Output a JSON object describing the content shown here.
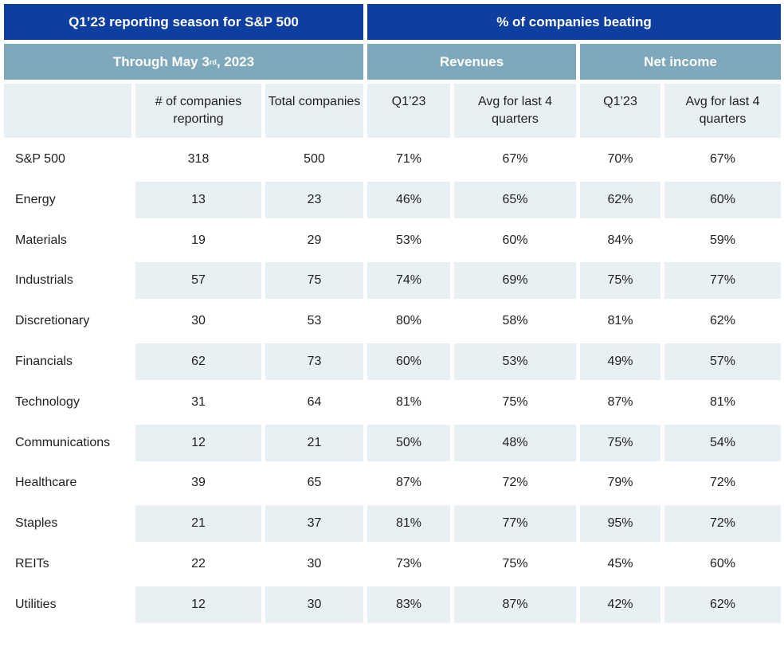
{
  "title_left": "Q1’23 reporting season for S&P 500",
  "title_right": "% of companies beating",
  "subtitle_left": {
    "text": "Through May 3",
    "sup": "rd",
    "tail": ", 2023"
  },
  "group_revenues": "Revenues",
  "group_net_income": "Net income",
  "columns": [
    "",
    "# of companies reporting",
    "Total companies",
    "Q1’23",
    "Avg for last 4 quarters",
    "Q1’23",
    "Avg for last 4 quarters"
  ],
  "rows": [
    [
      "S&P 500",
      "318",
      "500",
      "71%",
      "67%",
      "70%",
      "67%"
    ],
    [
      "Energy",
      "13",
      "23",
      "46%",
      "65%",
      "62%",
      "60%"
    ],
    [
      "Materials",
      "19",
      "29",
      "53%",
      "60%",
      "84%",
      "59%"
    ],
    [
      "Industrials",
      "57",
      "75",
      "74%",
      "69%",
      "75%",
      "77%"
    ],
    [
      "Discretionary",
      "30",
      "53",
      "80%",
      "58%",
      "81%",
      "62%"
    ],
    [
      "Financials",
      "62",
      "73",
      "60%",
      "53%",
      "49%",
      "57%"
    ],
    [
      "Technology",
      "31",
      "64",
      "81%",
      "75%",
      "87%",
      "81%"
    ],
    [
      "Communications",
      "12",
      "21",
      "50%",
      "48%",
      "75%",
      "54%"
    ],
    [
      "Healthcare",
      "39",
      "65",
      "87%",
      "72%",
      "79%",
      "72%"
    ],
    [
      "Staples",
      "21",
      "37",
      "81%",
      "77%",
      "95%",
      "72%"
    ],
    [
      "REITs",
      "22",
      "30",
      "73%",
      "75%",
      "45%",
      "60%"
    ],
    [
      "Utilities",
      "12",
      "30",
      "83%",
      "87%",
      "42%",
      "62%"
    ]
  ],
  "colors": {
    "header_dark": "#0e3fa0",
    "header_light": "#7ea9bd",
    "row_shade": "#e8f0f4"
  }
}
